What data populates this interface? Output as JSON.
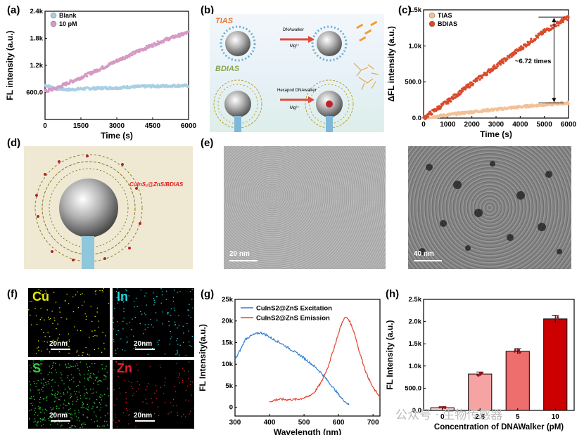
{
  "panel_labels": [
    "(a)",
    "(b)",
    "(c)",
    "(d)",
    "(e)",
    "(f)",
    "(g)",
    "(h)"
  ],
  "chart_data": [
    {
      "id": "a",
      "type": "scatter",
      "xlabel": "Time (s)",
      "ylabel": "FL intensity (a.u.)",
      "xlim": [
        0,
        6000
      ],
      "ylim": [
        0,
        2400
      ],
      "xticks": [
        "0",
        "1500",
        "3000",
        "4500",
        "6000"
      ],
      "yticks": [
        "600.0",
        "1.2k",
        "1.8k",
        "2.4k"
      ],
      "series": [
        {
          "name": "Blank",
          "color": "#a9cfe3",
          "x": [
            0,
            500,
            1000,
            1500,
            2000,
            2500,
            3000,
            3500,
            4000,
            4500,
            5000,
            5500,
            6000
          ],
          "values": [
            760,
            680,
            660,
            680,
            690,
            700,
            700,
            720,
            730,
            740,
            740,
            750,
            750
          ]
        },
        {
          "name": "10 pM",
          "color": "#d59ac4",
          "x": [
            0,
            500,
            1000,
            1500,
            2000,
            2500,
            3000,
            3500,
            4000,
            4500,
            5000,
            5500,
            6000
          ],
          "values": [
            620,
            700,
            820,
            930,
            1050,
            1170,
            1300,
            1420,
            1540,
            1650,
            1760,
            1850,
            1930
          ]
        }
      ]
    },
    {
      "id": "c",
      "type": "scatter",
      "xlabel": "Time (s)",
      "ylabel": "ΔFL intensity (a.u.)",
      "xlim": [
        0,
        6000
      ],
      "ylim": [
        0,
        1500
      ],
      "xticks": [
        "0",
        "1000",
        "2000",
        "3000",
        "4000",
        "5000",
        "6000"
      ],
      "yticks": [
        "0.0",
        "500.0",
        "1.0k",
        "1.5k"
      ],
      "annotation": "~6.72 times",
      "series": [
        {
          "name": "TIAS",
          "color": "#f2c197",
          "x": [
            0,
            1000,
            2000,
            3000,
            4000,
            5000,
            6000
          ],
          "values": [
            0,
            45,
            85,
            120,
            155,
            185,
            210
          ]
        },
        {
          "name": "BDIAS",
          "color": "#d94a2b",
          "x": [
            0,
            1000,
            2000,
            3000,
            4000,
            5000,
            6000
          ],
          "values": [
            0,
            230,
            480,
            720,
            960,
            1200,
            1400
          ]
        }
      ]
    },
    {
      "id": "g",
      "type": "line",
      "xlabel": "Wavelength (nm)",
      "ylabel": "FL Intensity(a.u.)",
      "xlim": [
        300,
        720
      ],
      "ylim": [
        -2000,
        25000
      ],
      "xticks": [
        "300",
        "400",
        "500",
        "600",
        "700"
      ],
      "yticks": [
        "0",
        "5k",
        "10k",
        "15k",
        "20k",
        "25k"
      ],
      "series": [
        {
          "name": "CuInS2@ZnS Excitation",
          "color": "#2f7fd6",
          "x": [
            300,
            310,
            320,
            330,
            345,
            360,
            375,
            390,
            410,
            430,
            450,
            470,
            490,
            510,
            530,
            550,
            570,
            590,
            610,
            630
          ],
          "values": [
            11000,
            12500,
            14000,
            15800,
            16500,
            17000,
            17300,
            16800,
            15800,
            15000,
            14000,
            13000,
            12000,
            10800,
            9500,
            8000,
            6000,
            4000,
            2000,
            600
          ]
        },
        {
          "name": "CuInS2@ZnS Emission",
          "color": "#e8412d",
          "x": [
            400,
            415,
            430,
            450,
            470,
            490,
            510,
            530,
            550,
            570,
            590,
            605,
            615,
            622,
            630,
            645,
            660,
            680,
            700,
            720
          ],
          "values": [
            1300,
            1700,
            1900,
            1800,
            1800,
            2000,
            2400,
            3500,
            5800,
            9500,
            14500,
            18500,
            20500,
            20800,
            20300,
            17500,
            13000,
            8000,
            4500,
            2500
          ]
        }
      ]
    },
    {
      "id": "h",
      "type": "bar",
      "xlabel": "Concentration of DNAWalker (pM)",
      "ylabel": "FL Intensity (a.u.)",
      "ylim": [
        0,
        2500
      ],
      "categories": [
        "0",
        "2.5",
        "5",
        "10"
      ],
      "values": [
        60,
        820,
        1330,
        2060
      ],
      "colors": [
        "#fbd3d3",
        "#f5a3a3",
        "#ee6d6d",
        "#cc0000"
      ],
      "yticks": [
        "0.0",
        "500.0",
        "1.0k",
        "1.5k",
        "2.0k",
        "2.5k"
      ]
    }
  ],
  "scheme_b": {
    "top_label": "TIAS",
    "bottom_label": "BDIAS",
    "top_arrow_label": "DNAwalker",
    "top_ion": "Mg²⁺",
    "bottom_arrow_label": "Hexapod DNAwalker",
    "bottom_ion": "Mg²⁺"
  },
  "scheme_d": {
    "label": "CuInS₂@ZnS/BDIAS"
  },
  "tem": {
    "left_scale": "20 nm",
    "right_scale": "40 nm"
  },
  "eds": [
    {
      "element": "Cu",
      "scale": "20nm",
      "color": "#e6e600"
    },
    {
      "element": "In",
      "scale": "20nm",
      "color": "#1fd6e0"
    },
    {
      "element": "S",
      "scale": "20nm",
      "color": "#2ecf3c"
    },
    {
      "element": "Zn",
      "scale": "20nm",
      "color": "#e0202b"
    }
  ],
  "watermark": "公众号 · 生物传感器"
}
